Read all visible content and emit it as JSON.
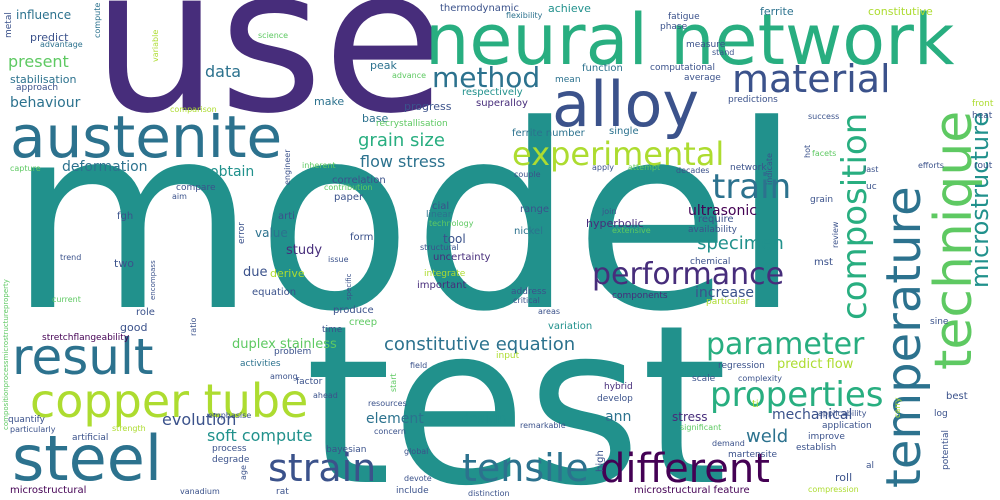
{
  "colors": {
    "purple": "#472d7b",
    "indigo": "#3b528b",
    "blue": "#2c728e",
    "teal": "#21918c",
    "green": "#28ae80",
    "lightgreen": "#5ec962",
    "yellow": "#addc30",
    "darkpurple": "#440154"
  },
  "words": {
    "model": "model",
    "use": "use",
    "test": "test",
    "neural_network": "neural network",
    "austenite": "austenite",
    "steel": "steel",
    "alloy": "alloy",
    "result": "result",
    "copper_tube": "copper tube",
    "technique": "technique",
    "temperature": "temperature",
    "tensile": "tensile",
    "strain": "strain",
    "different": "different",
    "method": "method",
    "material": "material",
    "experimental": "experimental",
    "composition": "composition",
    "microstructure": "microstructure",
    "properties": "properties",
    "performance": "performance",
    "parameter": "parameter",
    "train": "train",
    "grain_size": "grain size",
    "constitutive_equation": "constitutive equation",
    "flow_stress": "flow stress",
    "soft_compute": "soft compute",
    "weld": "weld",
    "evolution": "evolution",
    "specimen": "specimen",
    "ultrasonic": "ultrasonic",
    "present": "present",
    "data": "data",
    "behaviour": "behaviour",
    "deformation": "deformation",
    "obtain": "obtain",
    "mechanical": "mechanical",
    "increase": "increase",
    "element": "element",
    "design": "design",
    "ann": "ann",
    "stress": "stress",
    "value": "value",
    "study": "study",
    "duplex_stainless": "duplex stainless",
    "predict_flow": "predict flow",
    "influence": "influence",
    "predict": "predict",
    "stabilisation": "stabilisation",
    "achieve": "achieve",
    "thermodynamic": "thermodynamic",
    "ferrite": "ferrite",
    "constitutive": "constitutive",
    "fatigue": "fatigue",
    "phase": "phase",
    "measure": "measure",
    "stand": "stand",
    "computational": "computational",
    "average": "average",
    "function": "function",
    "mean": "mean",
    "peak": "peak",
    "advance": "advance",
    "respectively": "respectively",
    "superalloy": "superalloy",
    "progress": "progress",
    "make": "make",
    "base": "base",
    "recrystallisation": "recrystallisation",
    "ferrite_number": "ferrite number",
    "single": "single",
    "predictions": "predictions",
    "comparison": "comparison",
    "approach": "approach",
    "advantage": "advantage",
    "metal": "metal",
    "compute": "compute",
    "flexibility": "flexibility",
    "science": "science",
    "variable": "variable",
    "correlation": "correlation",
    "contribution": "contribution",
    "paper": "paper",
    "compare": "compare",
    "aim": "aim",
    "fgh": "fgh",
    "arti": "arti",
    "cial": "cial",
    "linear": "linear",
    "technology": "technology",
    "range": "range",
    "join": "join",
    "hyperbolic": "hyperbolic",
    "require": "require",
    "availability": "availability",
    "extensive": "extensive",
    "nickel": "nickel",
    "tool": "tool",
    "structural": "structural",
    "uncertainty": "uncertainty",
    "form": "form",
    "issue": "issue",
    "chemical": "chemical",
    "mst": "mst",
    "due": "due",
    "derive": "derive",
    "integrate": "integrate",
    "important": "important",
    "address": "address",
    "critical": "critical",
    "components": "components",
    "particular": "particular",
    "equation": "equation",
    "two": "two",
    "error": "error",
    "role": "role",
    "good": "good",
    "ratio": "ratio",
    "time": "time",
    "produce": "produce",
    "creep": "creep",
    "areas": "areas",
    "variation": "variation",
    "stretchflangeability": "stretchflangeability",
    "problem": "problem",
    "activities": "activities",
    "among": "among",
    "factor": "factor",
    "ahead": "ahead",
    "input": "input",
    "field": "field",
    "regression": "regression",
    "complexity": "complexity",
    "scale": "scale",
    "hybrid": "hybrid",
    "develop": "develop",
    "resources": "resources",
    "concern": "concern",
    "remarkable": "remarkable",
    "ti": "ti",
    "application": "application",
    "improve": "improve",
    "martensite": "martensite",
    "establish": "establish",
    "significant": "significant",
    "demand": "demand",
    "roll": "roll",
    "quantify": "quantify",
    "particularly": "particularly",
    "artificial": "artificial",
    "strength": "strength",
    "emphasise": "emphasise",
    "bayesian": "bayesian",
    "process": "process",
    "degrade": "degrade",
    "global": "global",
    "devote": "devote",
    "include": "include",
    "distinction": "distinction",
    "high": "high",
    "microstructural": "microstructural",
    "microstructural_feature": "microstructural feature",
    "vanadium": "vanadium",
    "age": "age",
    "rat": "rat",
    "compression": "compression",
    "al": "al",
    "potential": "potential",
    "log": "log",
    "best": "best",
    "sine": "sine",
    "front": "front",
    "heat": "heat",
    "rout": "rout",
    "efforts": "efforts",
    "last": "last",
    "uc": "uc",
    "grain": "grain",
    "facets": "facets",
    "review": "review",
    "success": "success",
    "network": "network",
    "indicate": "indicate",
    "decades": "decades",
    "attempt": "attempt",
    "apply": "apply",
    "couple": "couple",
    "hot": "hot",
    "carry": "carry",
    "applicability": "applicability",
    "capture": "capture",
    "inherent": "inherent",
    "engineer": "engineer",
    "trend": "trend",
    "encompass": "encompass",
    "specific": "specific",
    "current": "current",
    "compositionprocessmicrostructureproperty": "compositionprocessmicrostructureproperty",
    "start": "start"
  }
}
